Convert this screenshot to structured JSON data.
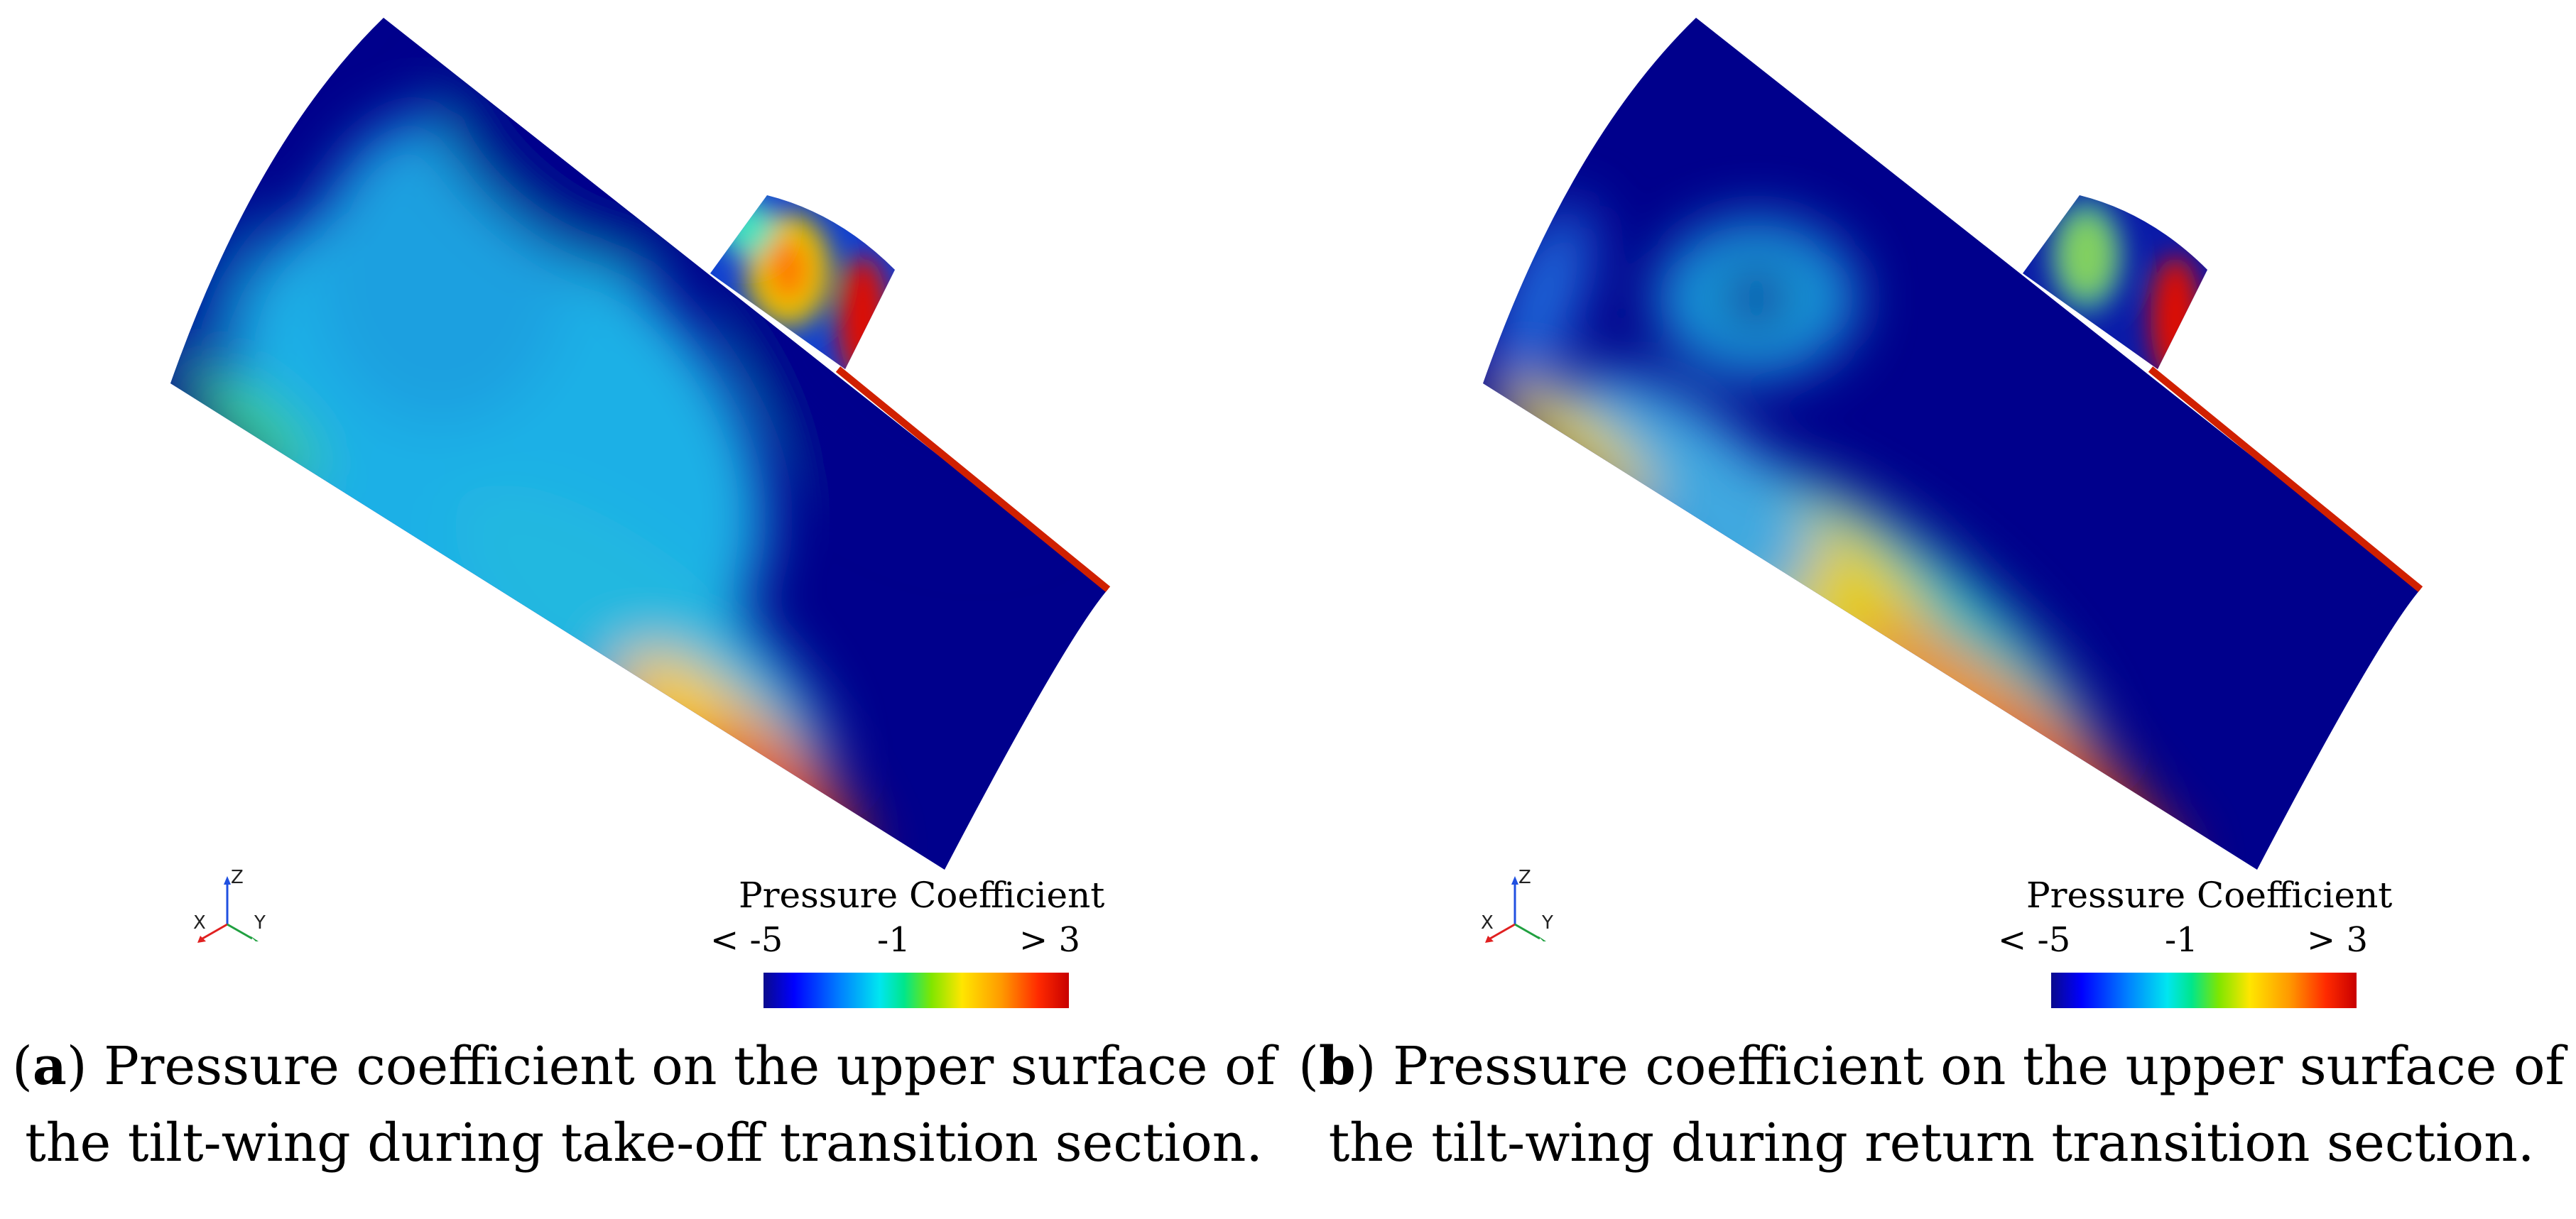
{
  "colors": {
    "low": "#00008c",
    "mid": "#00e6c8",
    "high": "#e60000",
    "axis_x": "#e02020",
    "axis_y": "#20a040",
    "axis_z": "#2050e0"
  },
  "panels": [
    {
      "caption_letter": "a",
      "caption_text": ") Pressure coefficient on the upper surface of the tilt-wing during take-off transition section.",
      "legend_title": "Pressure Coefficient",
      "tick_min": "< -5",
      "tick_mid": "-1",
      "tick_max": "> 3",
      "axis_x": "X",
      "axis_y": "Y",
      "axis_z": "Z"
    },
    {
      "caption_letter": "b",
      "caption_text": ") Pressure coefficient on the upper surface of the tilt-wing during return transition section.",
      "legend_title": "Pressure Coefficient",
      "tick_min": "< -5",
      "tick_mid": "-1",
      "tick_max": "> 3",
      "axis_x": "X",
      "axis_y": "Y",
      "axis_z": "Z"
    }
  ]
}
